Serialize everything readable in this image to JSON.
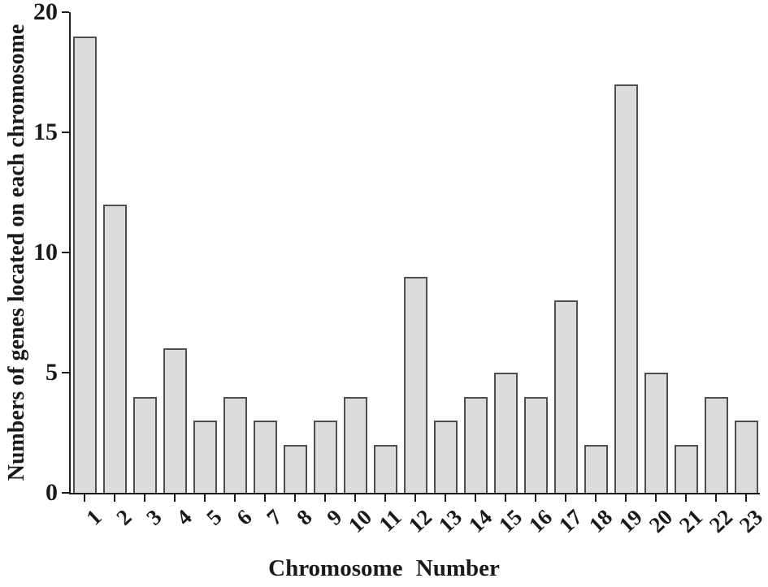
{
  "figure": {
    "background_color": "#ffffff"
  },
  "chart_data": {
    "type": "bar",
    "title": "",
    "xlabel": "Chromosome Number",
    "ylabel": "Numbers of genes located on each chromosome",
    "categories": [
      "1",
      "2",
      "3",
      "4",
      "5",
      "6",
      "7",
      "8",
      "9",
      "10",
      "11",
      "12",
      "13",
      "14",
      "15",
      "16",
      "17",
      "18",
      "19",
      "20",
      "21",
      "22",
      "23"
    ],
    "values": [
      19,
      12,
      4,
      6,
      3,
      4,
      3,
      2,
      3,
      4,
      2,
      9,
      3,
      4,
      5,
      4,
      8,
      2,
      17,
      5,
      2,
      4,
      3
    ],
    "ylim": [
      0,
      20
    ],
    "yticks": [
      0,
      5,
      10,
      15,
      20
    ],
    "x_tick_rotation_deg": -45,
    "grid": "off",
    "legend": "none",
    "bar_fill_color": "#dcdcdc",
    "bar_border_color": "#4f4f4f",
    "axis_color": "#1a1a1a",
    "text_color": "#1a1a1a"
  }
}
